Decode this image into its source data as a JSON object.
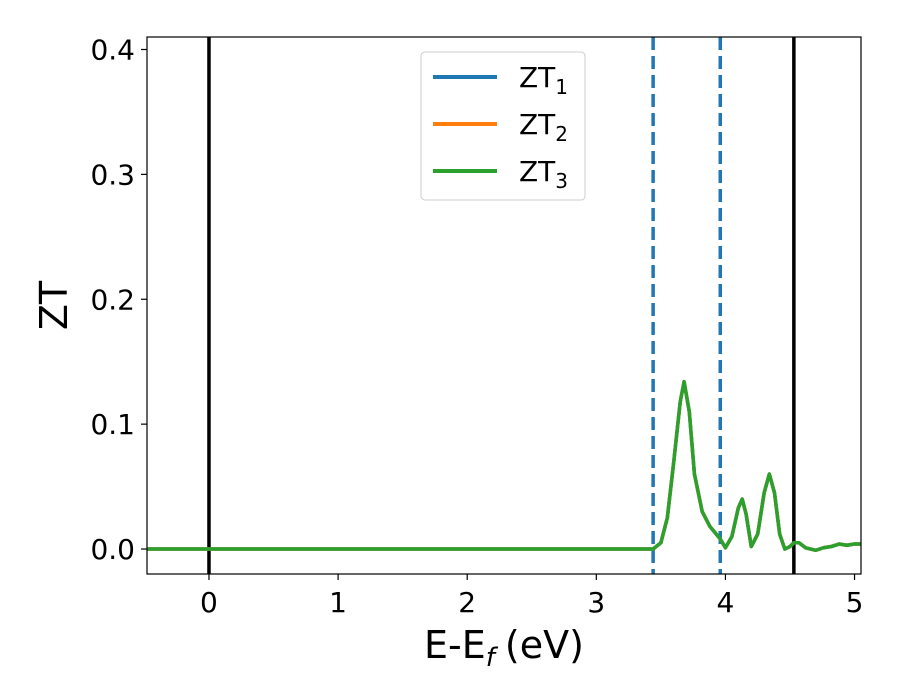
{
  "chart_data": {
    "type": "line",
    "xlabel": "E-E",
    "xlabel_sub": "f",
    "xlabel_unit": "(eV)",
    "ylabel": "ZT",
    "xlim": [
      -0.48,
      5.05
    ],
    "ylim": [
      -0.02,
      0.41
    ],
    "xticks": [
      0,
      1,
      2,
      3,
      4,
      5
    ],
    "xtick_labels": [
      "0",
      "1",
      "2",
      "3",
      "4",
      "5"
    ],
    "yticks": [
      0.0,
      0.1,
      0.2,
      0.3,
      0.4
    ],
    "ytick_labels": [
      "0.0",
      "0.1",
      "0.2",
      "0.3",
      "0.4"
    ],
    "grid": false,
    "legend": {
      "position": "top-center",
      "entries": [
        {
          "base": "ZT",
          "sub": "1",
          "color": "#1f77b4"
        },
        {
          "base": "ZT",
          "sub": "2",
          "color": "#ff7f0e"
        },
        {
          "base": "ZT",
          "sub": "3",
          "color": "#2ca02c"
        }
      ]
    },
    "vlines": [
      {
        "x": 0.0,
        "color": "#000000",
        "style": "solid"
      },
      {
        "x": 4.53,
        "color": "#000000",
        "style": "solid"
      },
      {
        "x": 3.44,
        "color": "#1f77b4",
        "style": "dashed"
      },
      {
        "x": 3.96,
        "color": "#1f77b4",
        "style": "dashed"
      }
    ],
    "series": [
      {
        "name": "ZT1",
        "color": "#1f77b4",
        "x": [
          -0.48,
          1.0,
          3.4,
          3.44,
          3.5,
          3.55,
          3.6,
          3.65,
          3.68,
          3.72,
          3.76,
          3.82,
          3.88,
          3.96,
          4.0,
          4.05,
          4.1,
          4.13,
          4.16,
          4.2,
          4.25,
          4.3,
          4.34,
          4.38,
          4.42,
          4.46,
          4.5,
          4.53,
          4.57,
          4.62,
          4.7,
          4.76,
          4.82,
          4.88,
          4.94,
          5.0,
          5.05
        ],
        "y": [
          0.0,
          0.0,
          0.0,
          0.0,
          0.005,
          0.025,
          0.07,
          0.118,
          0.134,
          0.11,
          0.06,
          0.03,
          0.018,
          0.008,
          0.001,
          0.01,
          0.033,
          0.04,
          0.028,
          0.002,
          0.012,
          0.045,
          0.06,
          0.045,
          0.012,
          0.0,
          0.002,
          0.005,
          0.005,
          0.001,
          -0.001,
          0.001,
          0.002,
          0.004,
          0.003,
          0.004,
          0.004
        ]
      },
      {
        "name": "ZT2",
        "color": "#ff7f0e",
        "x": [
          -0.48,
          1.0,
          3.4,
          3.44,
          3.5,
          3.55,
          3.6,
          3.65,
          3.68,
          3.72,
          3.76,
          3.82,
          3.88,
          3.96,
          4.0,
          4.05,
          4.1,
          4.13,
          4.16,
          4.2,
          4.25,
          4.3,
          4.34,
          4.38,
          4.42,
          4.46,
          4.5,
          4.53,
          4.57,
          4.62,
          4.7,
          4.76,
          4.82,
          4.88,
          4.94,
          5.0,
          5.05
        ],
        "y": [
          0.0,
          0.0,
          0.0,
          0.0,
          0.005,
          0.025,
          0.07,
          0.118,
          0.134,
          0.11,
          0.06,
          0.03,
          0.018,
          0.008,
          0.001,
          0.01,
          0.033,
          0.04,
          0.028,
          0.002,
          0.012,
          0.045,
          0.06,
          0.045,
          0.012,
          0.0,
          0.002,
          0.005,
          0.005,
          0.001,
          -0.001,
          0.001,
          0.002,
          0.004,
          0.003,
          0.004,
          0.004
        ]
      },
      {
        "name": "ZT3",
        "color": "#2ca02c",
        "x": [
          -0.48,
          1.0,
          3.4,
          3.44,
          3.5,
          3.55,
          3.6,
          3.65,
          3.68,
          3.72,
          3.76,
          3.82,
          3.88,
          3.96,
          4.0,
          4.05,
          4.1,
          4.13,
          4.16,
          4.2,
          4.25,
          4.3,
          4.34,
          4.38,
          4.42,
          4.46,
          4.5,
          4.53,
          4.57,
          4.62,
          4.7,
          4.76,
          4.82,
          4.88,
          4.94,
          5.0,
          5.05
        ],
        "y": [
          0.0,
          0.0,
          0.0,
          0.0,
          0.005,
          0.025,
          0.07,
          0.118,
          0.134,
          0.11,
          0.06,
          0.03,
          0.018,
          0.008,
          0.001,
          0.01,
          0.033,
          0.04,
          0.028,
          0.002,
          0.012,
          0.045,
          0.06,
          0.045,
          0.012,
          0.0,
          0.002,
          0.005,
          0.005,
          0.001,
          -0.001,
          0.001,
          0.002,
          0.004,
          0.003,
          0.004,
          0.004
        ]
      }
    ]
  }
}
